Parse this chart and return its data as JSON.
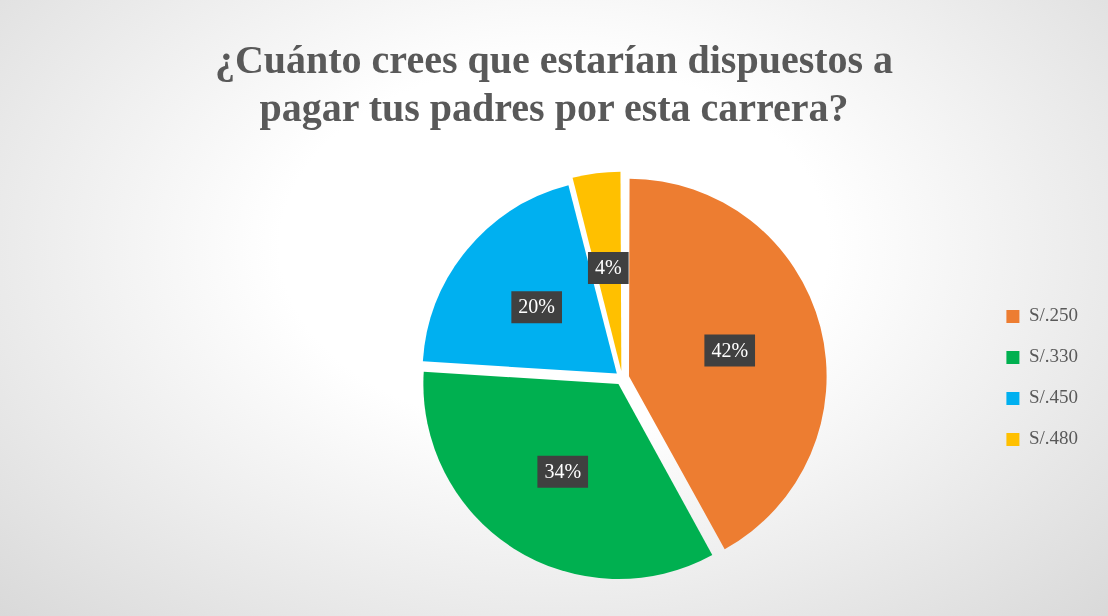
{
  "chart_data": {
    "type": "pie",
    "title": "¿Cuánto crees que estarían dispuestos a pagar tus padres por esta carrera?",
    "categories": [
      "S/.250",
      "S/.330",
      "S/.450",
      "S/.480"
    ],
    "values": [
      42,
      34,
      20,
      4
    ],
    "colors": [
      "#ed7d31",
      "#00b050",
      "#00b0f0",
      "#ffc000"
    ],
    "value_labels": [
      "42%",
      "34%",
      "20%",
      "4%"
    ],
    "legend": "right"
  }
}
